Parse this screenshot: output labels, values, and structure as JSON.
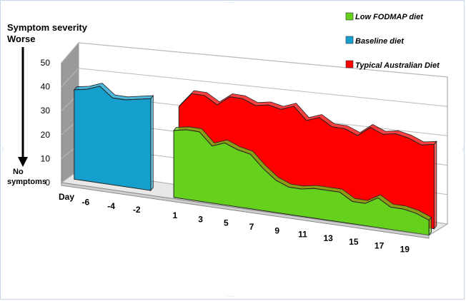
{
  "chart_data": {
    "type": "area",
    "title": "",
    "ylabel_lines": [
      "Symptom severity",
      "Worse"
    ],
    "ylabel_bottom_lines": [
      "No",
      "symptoms"
    ],
    "xlabel": "Day",
    "ylim": [
      0,
      50
    ],
    "yticks": [
      0,
      10,
      20,
      30,
      40,
      50
    ],
    "xtick_labels": [
      "-6",
      "-4",
      "-2",
      "1",
      "3",
      "5",
      "7",
      "9",
      "11",
      "13",
      "15",
      "17",
      "19"
    ],
    "legend_position": "top-right",
    "colors": {
      "low_fodmap": "#66d11c",
      "baseline": "#149fcc",
      "typical": "#ff0000"
    },
    "series": [
      {
        "name": "Typical Australian Diet",
        "color_key": "typical",
        "x": [
          1,
          2,
          3,
          4,
          5,
          6,
          7,
          8,
          9,
          10,
          11,
          12,
          13,
          14,
          15,
          16,
          17,
          18,
          19,
          20,
          21
        ],
        "values": [
          34,
          40,
          40,
          37,
          41,
          41,
          39,
          40,
          39,
          41,
          36,
          38,
          35,
          35,
          33,
          37,
          35,
          36,
          35,
          33,
          34
        ]
      },
      {
        "name": "Low FODMAP diet",
        "color_key": "low_fodmap",
        "x": [
          1,
          2,
          3,
          4,
          5,
          6,
          7,
          8,
          9,
          10,
          11,
          12,
          13,
          14,
          15,
          16,
          17,
          18,
          19,
          20,
          21
        ],
        "values": [
          27,
          28,
          28,
          23,
          25,
          23,
          22,
          17,
          13,
          11,
          11,
          12,
          12,
          12,
          9,
          9,
          12,
          9,
          9,
          8,
          6
        ]
      },
      {
        "name": "Baseline diet",
        "color_key": "baseline",
        "x": [
          -7,
          -6,
          -5,
          -4,
          -3,
          -2,
          -1
        ],
        "values": [
          36,
          37,
          39,
          35,
          35,
          36,
          37
        ]
      }
    ],
    "legend": [
      {
        "label": "Low FODMAP diet",
        "color_key": "low_fodmap"
      },
      {
        "label": "Baseline diet",
        "color_key": "baseline"
      },
      {
        "label": "Typical Australian Diet",
        "color_key": "typical"
      }
    ]
  }
}
